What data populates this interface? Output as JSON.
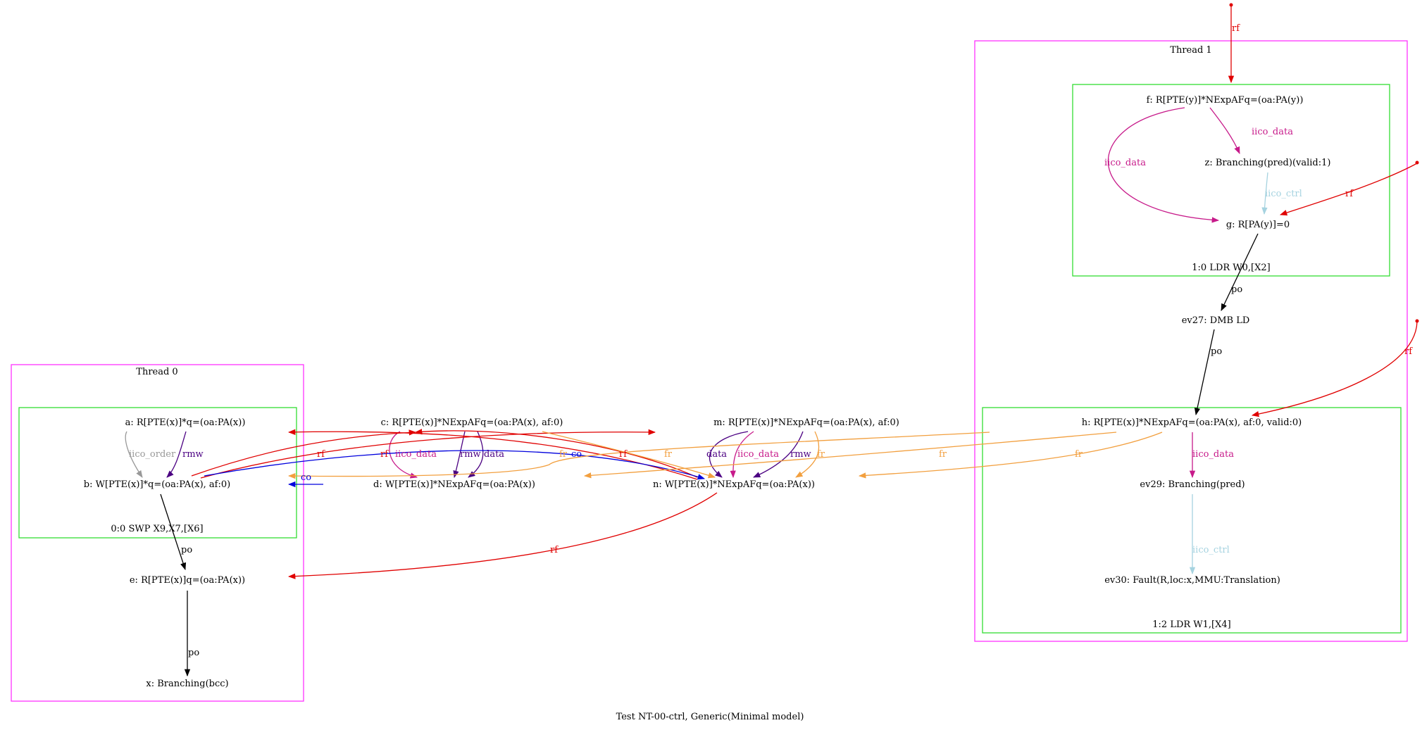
{
  "caption": "Test NT-00-ctrl, Generic(Minimal model)",
  "colors": {
    "thread_box": "#ff33ff",
    "instr_box": "#33dd33",
    "rf": "#e00000",
    "po": "#000000",
    "iico_data": "#c71a8a",
    "iico_ctrl": "#a6d3e0",
    "iico_order": "#999999",
    "rmw": "#4b0082",
    "data": "#4b0082",
    "co": "#0000dd",
    "fr": "#f29f3e"
  },
  "clusters": {
    "thread0": "Thread 0",
    "thread1": "Thread 1",
    "t0_instr0": "0:0 SWP X9,X7,[X6]",
    "t1_instr0": "1:0 LDR W0,[X2]",
    "t1_instr2": "1:2 LDR W1,[X4]"
  },
  "nodes": {
    "a": "a: R[PTE(x)]*q=(oa:PA(x))",
    "b": "b: W[PTE(x)]*q=(oa:PA(x), af:0)",
    "c": "c: R[PTE(x)]*NExpAFq=(oa:PA(x), af:0)",
    "d": "d: W[PTE(x)]*NExpAFq=(oa:PA(x))",
    "e": "e: R[PTE(x)]q=(oa:PA(x))",
    "x": "x: Branching(bcc)",
    "m": "m: R[PTE(x)]*NExpAFq=(oa:PA(x), af:0)",
    "n": "n: W[PTE(x)]*NExpAFq=(oa:PA(x))",
    "f": "f: R[PTE(y)]*NExpAFq=(oa:PA(y))",
    "z": "z: Branching(pred)(valid:1)",
    "g": "g: R[PA(y)]=0",
    "ev27": "ev27: DMB LD",
    "h": "h: R[PTE(x)]*NExpAFq=(oa:PA(x), af:0, valid:0)",
    "ev29": "ev29: Branching(pred)",
    "ev30": "ev30: Fault(R,loc:x,MMU:Translation)"
  },
  "edge_labels": {
    "rf": "rf",
    "po": "po",
    "iico_data": "iico_data",
    "iico_ctrl": "iico_ctrl",
    "iico_order": "iico_order",
    "rmw": "rmw",
    "data": "data",
    "co": "co",
    "fr": "fr"
  }
}
